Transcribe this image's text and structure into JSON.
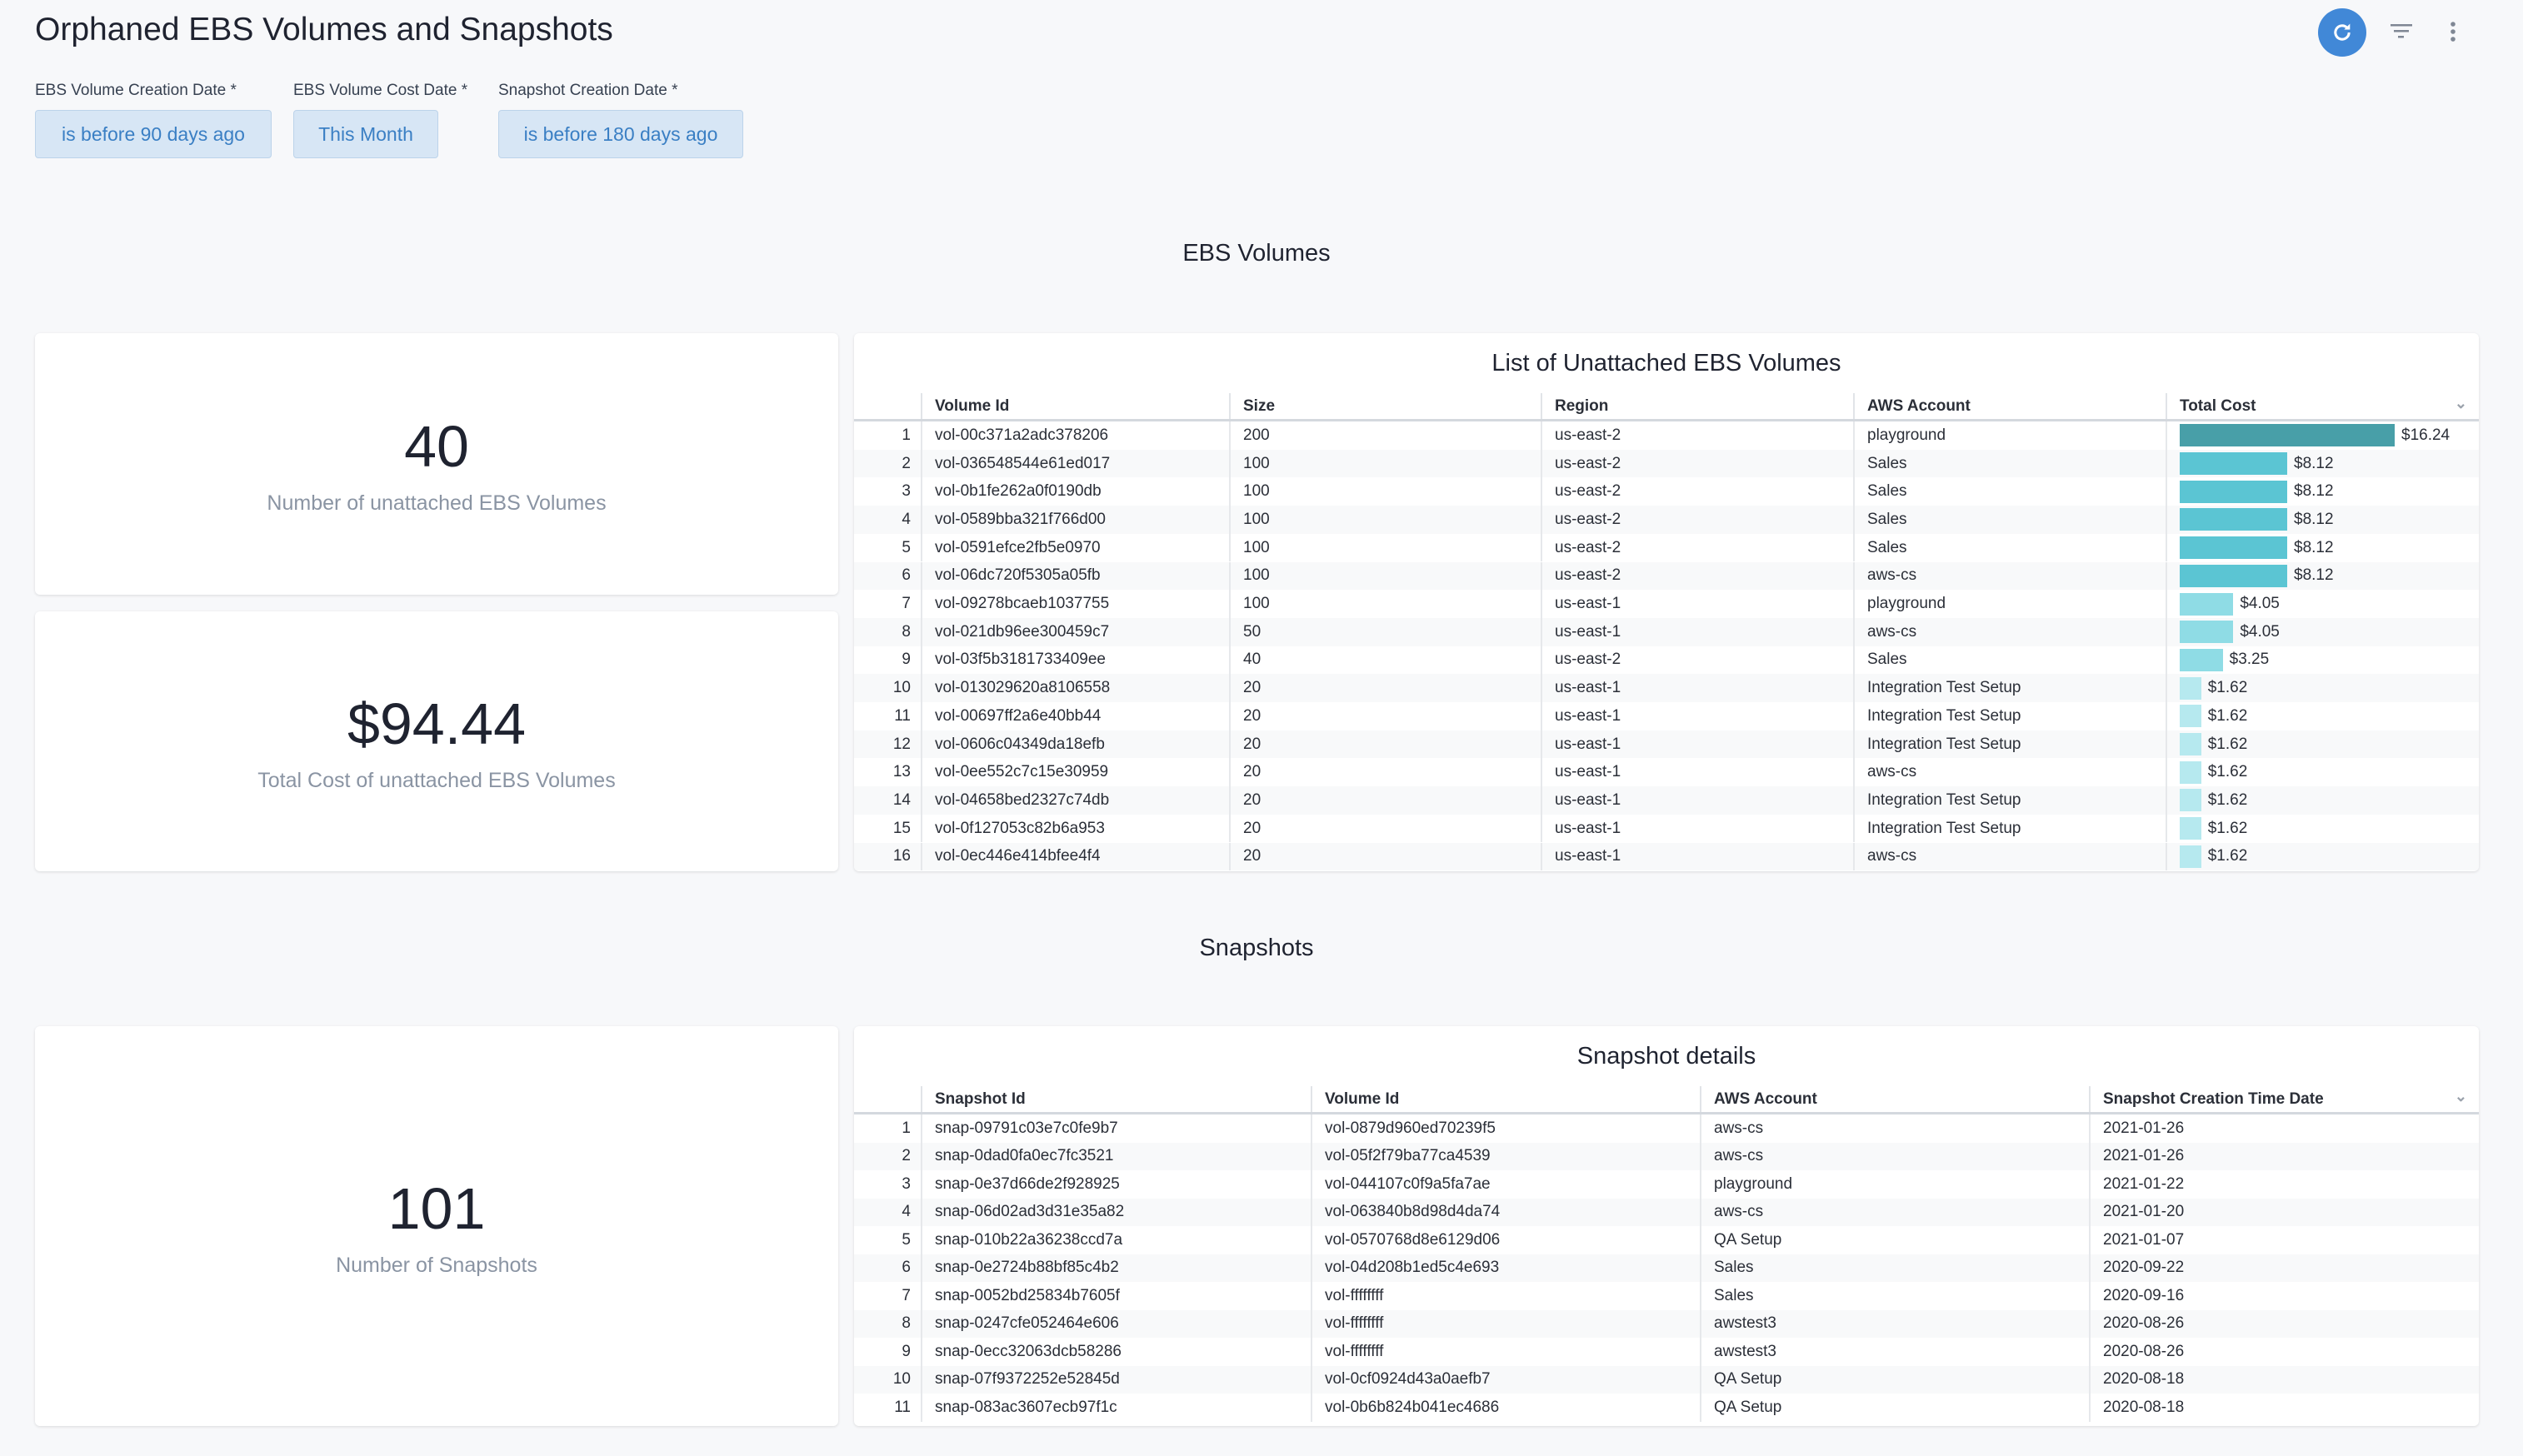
{
  "title": "Orphaned EBS Volumes and Snapshots",
  "toolbar": {
    "refresh": "refresh-icon",
    "filter": "filter-icon",
    "more": "more-vertical-icon",
    "accent": "#4188d7"
  },
  "filters": [
    {
      "label": "EBS Volume Creation Date *",
      "value": "is before 90 days ago"
    },
    {
      "label": "EBS Volume Cost Date *",
      "value": "This Month"
    },
    {
      "label": "Snapshot Creation Date *",
      "value": "is before 180 days ago"
    }
  ],
  "sections": {
    "ebs": "EBS Volumes",
    "snapshots": "Snapshots"
  },
  "kpis": [
    {
      "value": "40",
      "caption": "Number of unattached EBS Volumes"
    },
    {
      "value": "$94.44",
      "caption": "Total Cost of unattached EBS Volumes"
    },
    {
      "value": "101",
      "caption": "Number of Snapshots"
    }
  ],
  "ebs_table": {
    "title": "List of Unattached EBS Volumes",
    "columns": [
      "Volume Id",
      "Size",
      "Region",
      "AWS Account",
      "Total Cost"
    ],
    "bar_colors": [
      "#489fa8",
      "#5bc5d3",
      "#8fdce5",
      "#b6e9ef"
    ],
    "rows": [
      [
        "vol-00c371a2adc378206",
        "200",
        "us-east-2",
        "playground",
        "$16.24",
        16.24
      ],
      [
        "vol-036548544e61ed017",
        "100",
        "us-east-2",
        "Sales",
        "$8.12",
        8.12
      ],
      [
        "vol-0b1fe262a0f0190db",
        "100",
        "us-east-2",
        "Sales",
        "$8.12",
        8.12
      ],
      [
        "vol-0589bba321f766d00",
        "100",
        "us-east-2",
        "Sales",
        "$8.12",
        8.12
      ],
      [
        "vol-0591efce2fb5e0970",
        "100",
        "us-east-2",
        "Sales",
        "$8.12",
        8.12
      ],
      [
        "vol-06dc720f5305a05fb",
        "100",
        "us-east-2",
        "aws-cs",
        "$8.12",
        8.12
      ],
      [
        "vol-09278bcaeb1037755",
        "100",
        "us-east-1",
        "playground",
        "$4.05",
        4.05
      ],
      [
        "vol-021db96ee300459c7",
        "50",
        "us-east-1",
        "aws-cs",
        "$4.05",
        4.05
      ],
      [
        "vol-03f5b3181733409ee",
        "40",
        "us-east-2",
        "Sales",
        "$3.25",
        3.25
      ],
      [
        "vol-013029620a8106558",
        "20",
        "us-east-1",
        "Integration Test Setup",
        "$1.62",
        1.62
      ],
      [
        "vol-00697ff2a6e40bb44",
        "20",
        "us-east-1",
        "Integration Test Setup",
        "$1.62",
        1.62
      ],
      [
        "vol-0606c04349da18efb",
        "20",
        "us-east-1",
        "Integration Test Setup",
        "$1.62",
        1.62
      ],
      [
        "vol-0ee552c7c15e30959",
        "20",
        "us-east-1",
        "aws-cs",
        "$1.62",
        1.62
      ],
      [
        "vol-04658bed2327c74db",
        "20",
        "us-east-1",
        "Integration Test Setup",
        "$1.62",
        1.62
      ],
      [
        "vol-0f127053c82b6a953",
        "20",
        "us-east-1",
        "Integration Test Setup",
        "$1.62",
        1.62
      ],
      [
        "vol-0ec446e414bfee4f4",
        "20",
        "us-east-1",
        "aws-cs",
        "$1.62",
        1.62
      ]
    ]
  },
  "snap_table": {
    "title": "Snapshot details",
    "columns": [
      "Snapshot Id",
      "Volume Id",
      "AWS Account",
      "Snapshot Creation Time Date"
    ],
    "rows": [
      [
        "snap-09791c03e7c0fe9b7",
        "vol-0879d960ed70239f5",
        "aws-cs",
        "2021-01-26"
      ],
      [
        "snap-0dad0fa0ec7fc3521",
        "vol-05f2f79ba77ca4539",
        "aws-cs",
        "2021-01-26"
      ],
      [
        "snap-0e37d66de2f928925",
        "vol-044107c0f9a5fa7ae",
        "playground",
        "2021-01-22"
      ],
      [
        "snap-06d02ad3d31e35a82",
        "vol-063840b8d98d4da74",
        "aws-cs",
        "2021-01-20"
      ],
      [
        "snap-010b22a36238ccd7a",
        "vol-0570768d8e6129d06",
        "QA Setup",
        "2021-01-07"
      ],
      [
        "snap-0e2724b88bf85c4b2",
        "vol-04d208b1ed5c4e693",
        "Sales",
        "2020-09-22"
      ],
      [
        "snap-0052bd25834b7605f",
        "vol-ffffffff",
        "Sales",
        "2020-09-16"
      ],
      [
        "snap-0247cfe052464e606",
        "vol-ffffffff",
        "awstest3",
        "2020-08-26"
      ],
      [
        "snap-0ecc32063dcb58286",
        "vol-ffffffff",
        "awstest3",
        "2020-08-26"
      ],
      [
        "snap-07f9372252e52845d",
        "vol-0cf0924d43a0aefb7",
        "QA Setup",
        "2020-08-18"
      ],
      [
        "snap-083ac3607ecb97f1c",
        "vol-0b6b824b041ec4686",
        "QA Setup",
        "2020-08-18"
      ]
    ]
  }
}
